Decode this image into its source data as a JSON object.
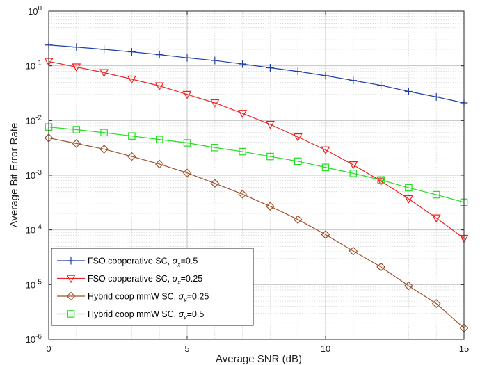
{
  "chart_data": {
    "type": "line",
    "xlabel": "Average SNR (dB)",
    "ylabel": "Average Bit Error Rate",
    "xlim": [
      0,
      15
    ],
    "ylim": [
      1e-06,
      1
    ],
    "yscale": "log",
    "grid": true,
    "minor_grid": true,
    "legend_position": "bottom-left",
    "x_ticks": [
      0,
      5,
      10,
      15
    ],
    "x_tick_labels": [
      "0",
      "5",
      "10",
      "15"
    ],
    "y_tick_exponents": [
      -6,
      -5,
      -4,
      -3,
      -2,
      -1,
      0
    ],
    "y_tick_base": "10",
    "x": [
      0,
      1,
      2,
      3,
      4,
      5,
      6,
      7,
      8,
      9,
      10,
      11,
      12,
      13,
      14,
      15
    ],
    "series": [
      {
        "legend_prefix": "FSO cooperative SC, ",
        "legend_sym": "σ",
        "legend_sub": "x",
        "legend_value": "=0.5",
        "color": "#1f3fa8",
        "marker": "plus",
        "values": [
          0.24,
          0.22,
          0.2,
          0.18,
          0.16,
          0.14,
          0.125,
          0.108,
          0.092,
          0.079,
          0.066,
          0.054,
          0.044,
          0.034,
          0.027,
          0.021
        ]
      },
      {
        "legend_prefix": "FSO cooperative SC, ",
        "legend_sym": "σ",
        "legend_sub": "x",
        "legend_value": "=0.25",
        "color": "#ee2222",
        "marker": "triangle-down",
        "values": [
          0.12,
          0.095,
          0.075,
          0.057,
          0.043,
          0.03,
          0.021,
          0.0135,
          0.0085,
          0.005,
          0.0029,
          0.00155,
          0.00078,
          0.00037,
          0.000165,
          7e-05
        ]
      },
      {
        "legend_prefix": "Hybrid coop mmW SC, ",
        "legend_sym": "σ",
        "legend_sub": "x",
        "legend_value": "=0.25",
        "color": "#a0522d",
        "marker": "diamond",
        "values": [
          0.0048,
          0.0038,
          0.003,
          0.0022,
          0.0016,
          0.0011,
          0.00071,
          0.00045,
          0.00027,
          0.000155,
          8.2e-05,
          4.1e-05,
          2.1e-05,
          9.5e-06,
          4.5e-06,
          1.6e-06
        ]
      },
      {
        "legend_prefix": "Hybrid coop mmW SC, ",
        "legend_sym": "σ",
        "legend_sub": "x",
        "legend_value": "=0.5",
        "color": "#22dd22",
        "marker": "square",
        "values": [
          0.0076,
          0.0068,
          0.006,
          0.0052,
          0.0045,
          0.0039,
          0.0032,
          0.0027,
          0.0022,
          0.0018,
          0.00139,
          0.00108,
          0.00082,
          0.00059,
          0.00044,
          0.00032
        ]
      }
    ]
  }
}
